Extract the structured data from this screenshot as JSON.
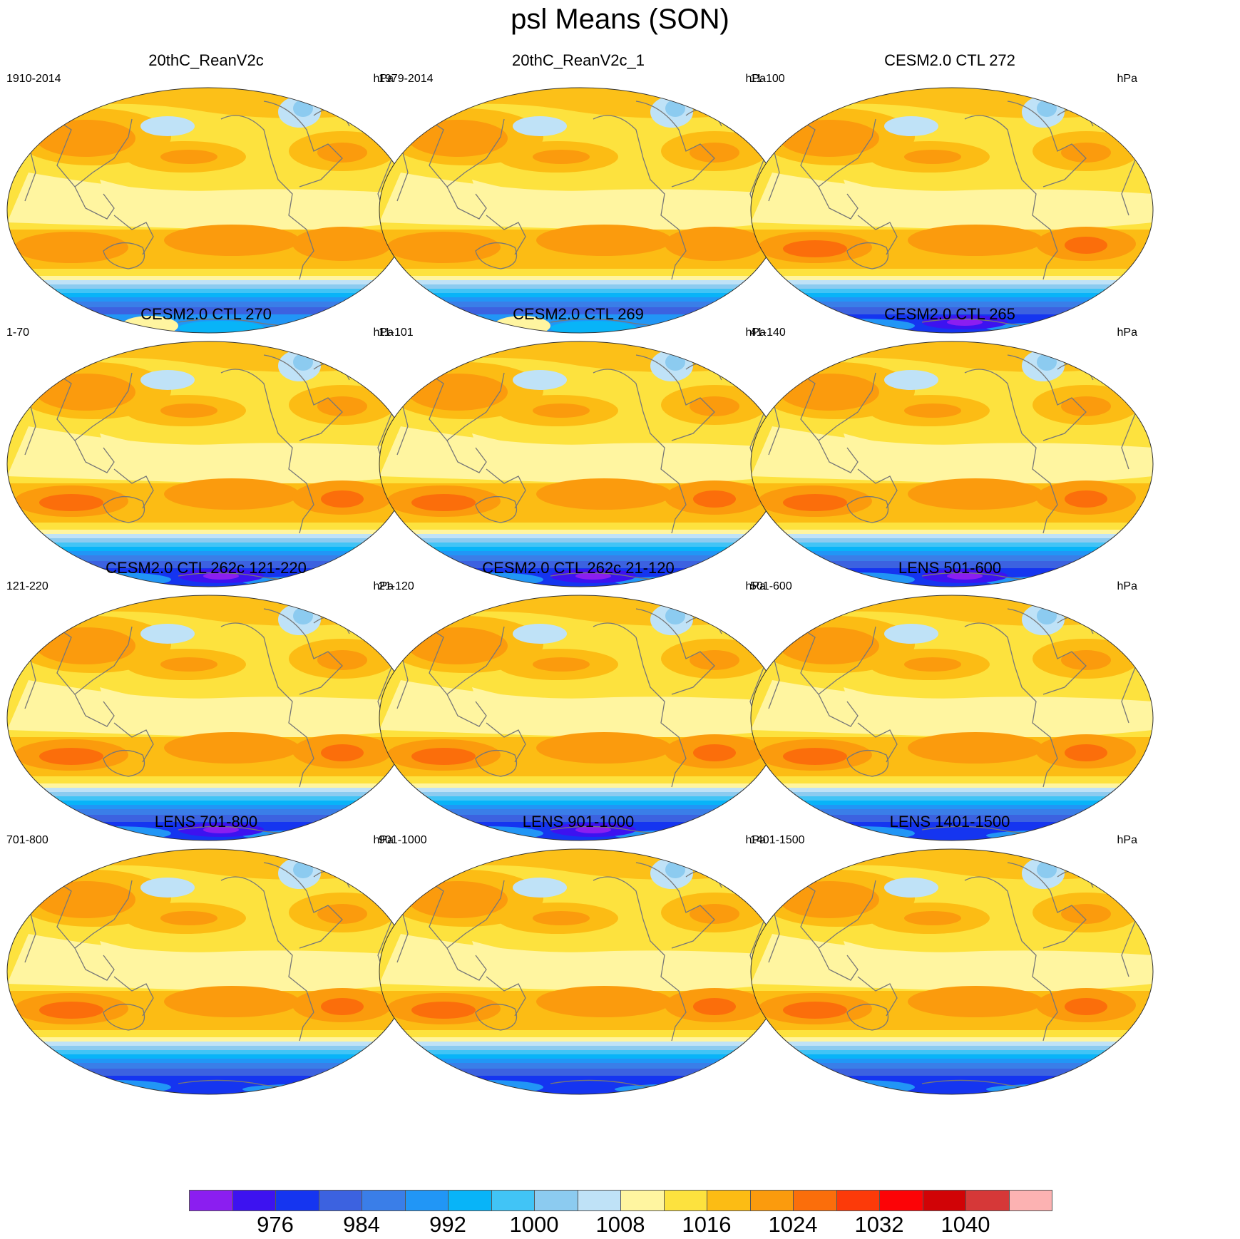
{
  "title": "psl Means (SON)",
  "units": "hPa",
  "panels": [
    {
      "title": "20thC_ReanV2c",
      "period": "1910-2014",
      "units": "hPa"
    },
    {
      "title": "20thC_ReanV2c_1",
      "period": "1979-2014",
      "units": "hPa"
    },
    {
      "title": "CESM2.0 CTL 272",
      "period": "11-100",
      "units": "hPa"
    },
    {
      "title": "CESM2.0 CTL 270",
      "period": "1-70",
      "units": "hPa"
    },
    {
      "title": "CESM2.0 CTL 269",
      "period": "11-101",
      "units": "hPa"
    },
    {
      "title": "CESM2.0 CTL 265",
      "period": "41-140",
      "units": "hPa"
    },
    {
      "title": "CESM2.0 CTL 262c 121-220",
      "period": "121-220",
      "units": "hPa"
    },
    {
      "title": "CESM2.0 CTL 262c 21-120",
      "period": "21-120",
      "units": "hPa"
    },
    {
      "title": "LENS 501-600",
      "period": "501-600",
      "units": "hPa"
    },
    {
      "title": "LENS 701-800",
      "period": "701-800",
      "units": "hPa"
    },
    {
      "title": "LENS 901-1000",
      "period": "901-1000",
      "units": "hPa"
    },
    {
      "title": "LENS 1401-1500",
      "period": "1401-1500",
      "units": "hPa"
    }
  ],
  "colorbar": {
    "colors": [
      "#8b1ef0",
      "#3d12f0",
      "#1535f0",
      "#3c62e0",
      "#3a7ee8",
      "#2196f6",
      "#08b4f8",
      "#41c4f6",
      "#8ccbf0",
      "#bfe2f7",
      "#fff5a0",
      "#fde23e",
      "#fcbc14",
      "#fb9b0d",
      "#fb6e0b",
      "#fc3a09",
      "#fc0306",
      "#d10306",
      "#d63838",
      "#fcb2b2"
    ],
    "labels": [
      "976",
      "984",
      "992",
      "1000",
      "1008",
      "1016",
      "1024",
      "1032",
      "1040"
    ],
    "label_after_box": [
      2,
      4,
      6,
      8,
      10,
      12,
      14,
      16,
      18
    ]
  }
}
